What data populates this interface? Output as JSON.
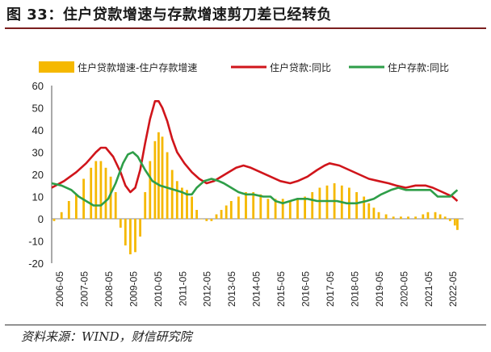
{
  "title": "图 33：住户贷款增速与存款增速剪刀差已经转负",
  "source": "资料来源：WIND，财信研究院",
  "chart_data": {
    "type": "bar+line",
    "ylim": [
      -20,
      60
    ],
    "yticks": [
      "60",
      "50",
      "40",
      "30",
      "20",
      "10",
      "0",
      "-10",
      "-20"
    ],
    "xticks": [
      "2006-05",
      "2007-05",
      "2008-05",
      "2009-05",
      "2010-05",
      "2011-05",
      "2012-05",
      "2013-05",
      "2014-05",
      "2015-05",
      "2016-05",
      "2017-05",
      "2018-05",
      "2019-05",
      "2020-05",
      "2021-05",
      "2022-05"
    ],
    "legend": [
      {
        "name": "住户贷款增速-住户存款增速",
        "color": "#F5B800",
        "kind": "bar"
      },
      {
        "name": "住户贷款:同比",
        "color": "#D0151B",
        "kind": "line"
      },
      {
        "name": "住户存款:同比",
        "color": "#2E9E48",
        "kind": "line"
      }
    ],
    "series": [
      {
        "name": "住户贷款:同比",
        "color": "#D0151B",
        "points": [
          [
            2006.0,
            14
          ],
          [
            2006.5,
            17
          ],
          [
            2007.0,
            21
          ],
          [
            2007.4,
            25
          ],
          [
            2007.8,
            30
          ],
          [
            2008.0,
            32
          ],
          [
            2008.2,
            32
          ],
          [
            2008.5,
            28
          ],
          [
            2008.8,
            21
          ],
          [
            2009.0,
            15
          ],
          [
            2009.2,
            12
          ],
          [
            2009.4,
            14
          ],
          [
            2009.6,
            22
          ],
          [
            2009.8,
            34
          ],
          [
            2010.0,
            45
          ],
          [
            2010.2,
            53
          ],
          [
            2010.35,
            53
          ],
          [
            2010.5,
            50
          ],
          [
            2010.7,
            44
          ],
          [
            2010.9,
            36
          ],
          [
            2011.1,
            30
          ],
          [
            2011.4,
            25
          ],
          [
            2011.7,
            21
          ],
          [
            2012.0,
            18
          ],
          [
            2012.3,
            16
          ],
          [
            2012.6,
            17
          ],
          [
            2012.9,
            19
          ],
          [
            2013.2,
            21
          ],
          [
            2013.5,
            23
          ],
          [
            2013.8,
            24
          ],
          [
            2014.1,
            23
          ],
          [
            2014.5,
            21
          ],
          [
            2014.9,
            19
          ],
          [
            2015.3,
            17
          ],
          [
            2015.7,
            16
          ],
          [
            2016.0,
            17
          ],
          [
            2016.4,
            19
          ],
          [
            2016.8,
            22
          ],
          [
            2017.1,
            24
          ],
          [
            2017.3,
            25
          ],
          [
            2017.7,
            24
          ],
          [
            2018.1,
            22
          ],
          [
            2018.5,
            20
          ],
          [
            2018.9,
            18
          ],
          [
            2019.3,
            17
          ],
          [
            2019.7,
            16
          ],
          [
            2020.0,
            15
          ],
          [
            2020.4,
            14
          ],
          [
            2020.8,
            15
          ],
          [
            2021.2,
            15
          ],
          [
            2021.5,
            14
          ],
          [
            2021.9,
            12
          ],
          [
            2022.1,
            11
          ],
          [
            2022.3,
            10
          ],
          [
            2022.5,
            8
          ]
        ]
      },
      {
        "name": "住户存款:同比",
        "color": "#2E9E48",
        "points": [
          [
            2006.0,
            16
          ],
          [
            2006.4,
            15
          ],
          [
            2006.8,
            13
          ],
          [
            2007.1,
            10
          ],
          [
            2007.4,
            8
          ],
          [
            2007.7,
            6
          ],
          [
            2008.0,
            6
          ],
          [
            2008.3,
            9
          ],
          [
            2008.6,
            16
          ],
          [
            2008.9,
            25
          ],
          [
            2009.1,
            29
          ],
          [
            2009.3,
            30
          ],
          [
            2009.5,
            28
          ],
          [
            2009.8,
            22
          ],
          [
            2010.1,
            17
          ],
          [
            2010.4,
            15
          ],
          [
            2010.7,
            14
          ],
          [
            2011.0,
            13
          ],
          [
            2011.3,
            12
          ],
          [
            2011.5,
            11
          ],
          [
            2011.7,
            11
          ],
          [
            2011.9,
            14
          ],
          [
            2012.2,
            17
          ],
          [
            2012.5,
            18
          ],
          [
            2012.8,
            17
          ],
          [
            2013.0,
            16
          ],
          [
            2013.3,
            14
          ],
          [
            2013.6,
            12
          ],
          [
            2013.9,
            11
          ],
          [
            2014.2,
            11
          ],
          [
            2014.6,
            10
          ],
          [
            2014.9,
            10
          ],
          [
            2015.1,
            8
          ],
          [
            2015.4,
            7
          ],
          [
            2015.7,
            8
          ],
          [
            2016.0,
            9
          ],
          [
            2016.4,
            9
          ],
          [
            2016.8,
            8
          ],
          [
            2017.2,
            8
          ],
          [
            2017.6,
            8
          ],
          [
            2018.0,
            7
          ],
          [
            2018.4,
            7
          ],
          [
            2018.8,
            8
          ],
          [
            2019.1,
            9
          ],
          [
            2019.4,
            11
          ],
          [
            2019.8,
            13
          ],
          [
            2020.1,
            14
          ],
          [
            2020.4,
            13
          ],
          [
            2020.8,
            13
          ],
          [
            2021.1,
            13
          ],
          [
            2021.4,
            13
          ],
          [
            2021.7,
            10
          ],
          [
            2022.0,
            10
          ],
          [
            2022.2,
            10
          ],
          [
            2022.4,
            12
          ],
          [
            2022.5,
            13
          ]
        ]
      },
      {
        "name": "住户贷款增速-住户存款增速",
        "color": "#F5B800",
        "points": [
          [
            2006.1,
            -1
          ],
          [
            2006.4,
            3
          ],
          [
            2006.7,
            8
          ],
          [
            2007.0,
            11
          ],
          [
            2007.3,
            18
          ],
          [
            2007.6,
            23
          ],
          [
            2007.8,
            26
          ],
          [
            2008.0,
            26
          ],
          [
            2008.2,
            23
          ],
          [
            2008.4,
            19
          ],
          [
            2008.6,
            12
          ],
          [
            2008.8,
            -4
          ],
          [
            2009.0,
            -12
          ],
          [
            2009.2,
            -16
          ],
          [
            2009.4,
            -15
          ],
          [
            2009.6,
            -8
          ],
          [
            2009.8,
            12
          ],
          [
            2010.0,
            26
          ],
          [
            2010.2,
            35
          ],
          [
            2010.35,
            39
          ],
          [
            2010.5,
            37
          ],
          [
            2010.7,
            30
          ],
          [
            2010.9,
            22
          ],
          [
            2011.1,
            17
          ],
          [
            2011.3,
            14
          ],
          [
            2011.5,
            13
          ],
          [
            2011.7,
            10
          ],
          [
            2011.9,
            4
          ],
          [
            2012.1,
            0
          ],
          [
            2012.3,
            -1
          ],
          [
            2012.5,
            -1
          ],
          [
            2012.7,
            2
          ],
          [
            2012.9,
            4
          ],
          [
            2013.1,
            6
          ],
          [
            2013.3,
            8
          ],
          [
            2013.6,
            10
          ],
          [
            2013.9,
            12
          ],
          [
            2014.2,
            12
          ],
          [
            2014.5,
            11
          ],
          [
            2014.8,
            9
          ],
          [
            2015.1,
            9
          ],
          [
            2015.4,
            9
          ],
          [
            2015.7,
            8
          ],
          [
            2016.0,
            9
          ],
          [
            2016.3,
            10
          ],
          [
            2016.6,
            12
          ],
          [
            2016.9,
            14
          ],
          [
            2017.2,
            15
          ],
          [
            2017.5,
            16
          ],
          [
            2017.8,
            15
          ],
          [
            2018.1,
            14
          ],
          [
            2018.4,
            12
          ],
          [
            2018.7,
            10
          ],
          [
            2018.9,
            7
          ],
          [
            2019.1,
            5
          ],
          [
            2019.3,
            3
          ],
          [
            2019.6,
            2
          ],
          [
            2019.9,
            1
          ],
          [
            2020.2,
            1
          ],
          [
            2020.5,
            1
          ],
          [
            2020.8,
            1
          ],
          [
            2021.1,
            2
          ],
          [
            2021.3,
            3
          ],
          [
            2021.6,
            3
          ],
          [
            2021.8,
            2
          ],
          [
            2022.0,
            1
          ],
          [
            2022.2,
            -1
          ],
          [
            2022.4,
            -3
          ],
          [
            2022.5,
            -5
          ]
        ]
      }
    ]
  }
}
